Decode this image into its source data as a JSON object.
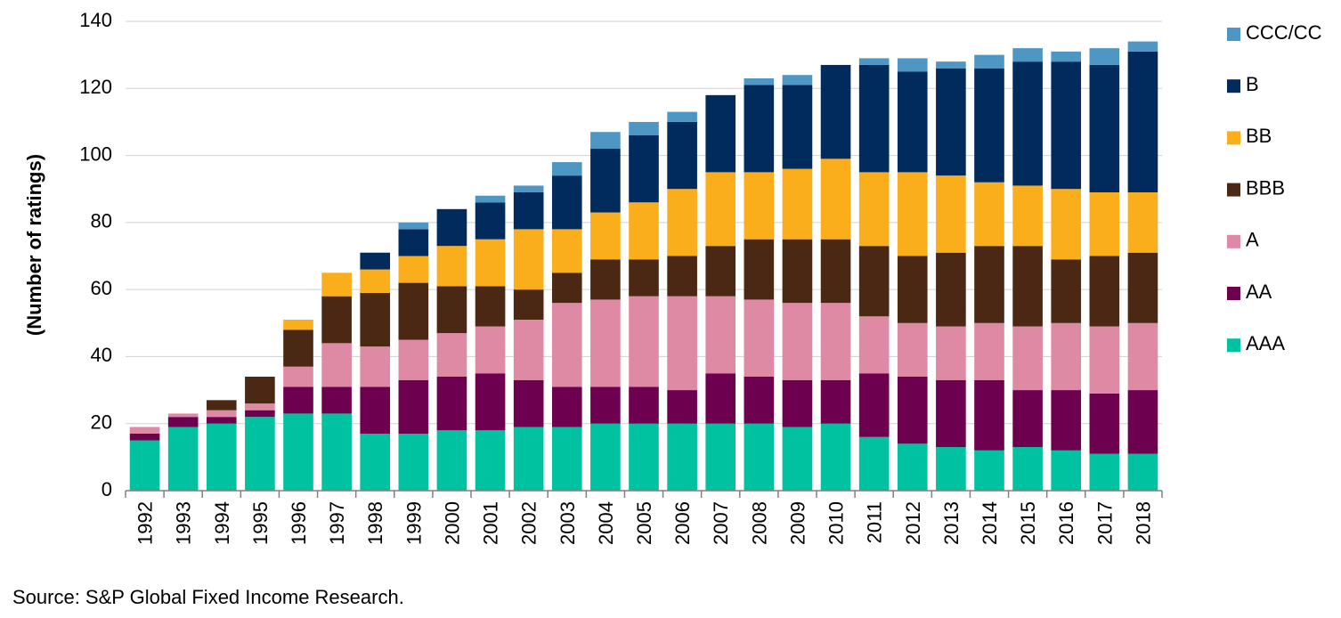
{
  "chart_data": {
    "type": "bar",
    "stacked": true,
    "title": "",
    "xlabel": "",
    "ylabel": "(Number of ratings)",
    "ylim": [
      0,
      140
    ],
    "yticks": [
      0,
      20,
      40,
      60,
      80,
      100,
      120,
      140
    ],
    "grid": true,
    "legend_position": "right",
    "categories": [
      "1992",
      "1993",
      "1994",
      "1995",
      "1996",
      "1997",
      "1998",
      "1999",
      "2000",
      "2001",
      "2002",
      "2003",
      "2004",
      "2005",
      "2006",
      "2007",
      "2008",
      "2009",
      "2010",
      "2011",
      "2012",
      "2013",
      "2014",
      "2015",
      "2016",
      "2017",
      "2018"
    ],
    "series": [
      {
        "name": "AAA",
        "color": "#00C2A0",
        "values": [
          15,
          19,
          20,
          22,
          23,
          23,
          17,
          17,
          18,
          18,
          19,
          19,
          20,
          20,
          20,
          20,
          20,
          19,
          20,
          16,
          14,
          13,
          12,
          13,
          12,
          11,
          11
        ]
      },
      {
        "name": "AA",
        "color": "#6E0050",
        "values": [
          2,
          3,
          2,
          2,
          8,
          8,
          14,
          16,
          16,
          17,
          14,
          12,
          11,
          11,
          10,
          15,
          14,
          14,
          13,
          19,
          20,
          20,
          21,
          17,
          18,
          18,
          19
        ]
      },
      {
        "name": "A",
        "color": "#DE8AA5",
        "values": [
          2,
          1,
          2,
          2,
          6,
          13,
          12,
          12,
          13,
          14,
          18,
          25,
          26,
          27,
          28,
          23,
          23,
          23,
          23,
          17,
          16,
          16,
          17,
          19,
          20,
          20,
          20
        ]
      },
      {
        "name": "BBB",
        "color": "#4B2814",
        "values": [
          0,
          0,
          3,
          8,
          11,
          14,
          16,
          17,
          14,
          12,
          9,
          9,
          12,
          11,
          12,
          15,
          18,
          19,
          19,
          21,
          20,
          22,
          23,
          24,
          19,
          21,
          21
        ]
      },
      {
        "name": "BB",
        "color": "#FBAE1C",
        "values": [
          0,
          0,
          0,
          0,
          3,
          7,
          7,
          8,
          12,
          14,
          18,
          13,
          14,
          17,
          20,
          22,
          20,
          21,
          24,
          22,
          25,
          23,
          19,
          18,
          21,
          19,
          18
        ]
      },
      {
        "name": "B",
        "color": "#002B5C",
        "values": [
          0,
          0,
          0,
          0,
          0,
          0,
          5,
          8,
          11,
          11,
          11,
          16,
          19,
          20,
          20,
          23,
          26,
          25,
          28,
          32,
          30,
          32,
          34,
          37,
          38,
          38,
          42
        ]
      },
      {
        "name": "CCC/CC",
        "color": "#4E96C4",
        "values": [
          0,
          0,
          0,
          0,
          0,
          0,
          0,
          2,
          0,
          2,
          2,
          4,
          5,
          4,
          3,
          0,
          2,
          3,
          0,
          2,
          4,
          2,
          4,
          4,
          3,
          5,
          3
        ]
      }
    ]
  },
  "source_note": "Source: S&P Global Fixed Income Research."
}
